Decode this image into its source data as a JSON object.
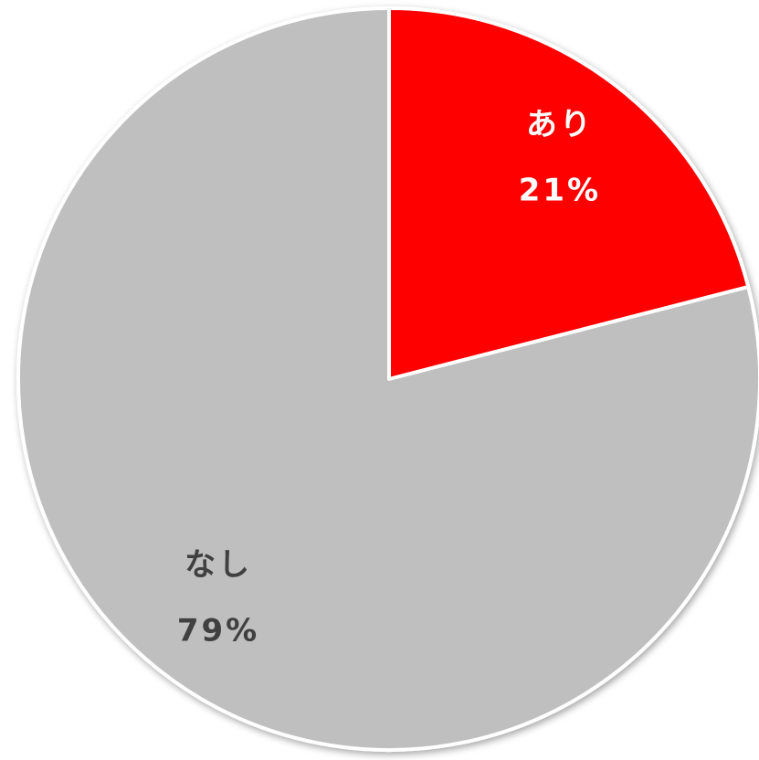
{
  "chart_data": {
    "type": "pie",
    "categories": [
      "あり",
      "なし"
    ],
    "values": [
      21,
      79
    ],
    "value_labels": [
      "21%",
      "79%"
    ],
    "colors": [
      "#ff0000",
      "#bfbfbf"
    ]
  }
}
